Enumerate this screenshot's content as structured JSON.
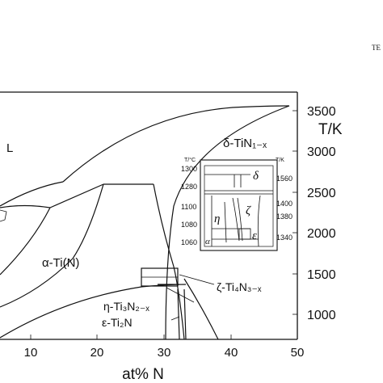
{
  "corner_text": "TE",
  "phases": {
    "liquid": "L",
    "delta": "δ-TiN₁₋ₓ",
    "alpha": "α-Ti(N)",
    "zeta": "ζ-Ti₄N₃₋ₓ",
    "eta": "η-Ti₃N₂₋ₓ",
    "epsilon": "ε-Ti₂N"
  },
  "axes": {
    "x_label": "at% N",
    "x_ticks": [
      "10",
      "20",
      "30",
      "40",
      "50"
    ],
    "y_label": "T/K",
    "y_ticks": [
      "1000",
      "1500",
      "2000",
      "2500",
      "3000",
      "3500"
    ]
  },
  "inset": {
    "left_unit": "T/°C",
    "right_unit": "T/K",
    "left_ticks": [
      "1300",
      "1280",
      "1100",
      "1080",
      "1060"
    ],
    "right_ticks": [
      "1560",
      "1400",
      "1380",
      "1340"
    ],
    "labels": {
      "delta": "δ",
      "eta": "η",
      "zeta": "ζ",
      "epsilon": "ε",
      "alpha": "α"
    }
  }
}
